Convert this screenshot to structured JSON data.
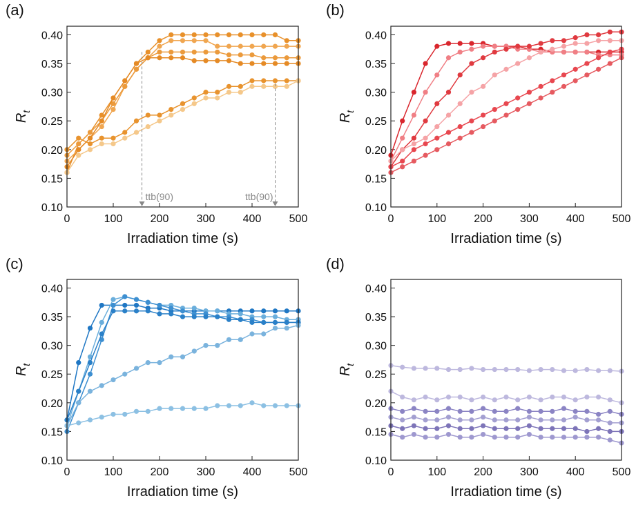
{
  "chart_data": [
    {
      "type": "line",
      "title": "(a)",
      "xlabel": "Irradiation time (s)",
      "ylabel": "R",
      "ylabel_subscript": "t",
      "xlim": [
        0,
        500
      ],
      "ylim": [
        0.1,
        0.415
      ],
      "xticks": [
        0,
        100,
        200,
        300,
        400,
        500
      ],
      "yticks": [
        {
          "value": 0.1,
          "label": "0.10"
        },
        0.15,
        {
          "value": 0.2,
          "label": "0.20"
        },
        0.25,
        {
          "value": 0.3,
          "label": "0.30"
        },
        0.35,
        {
          "value": 0.4,
          "label": "0.40"
        }
      ],
      "x": [
        0,
        25,
        50,
        75,
        100,
        125,
        150,
        175,
        200,
        225,
        250,
        275,
        300,
        325,
        350,
        375,
        400,
        425,
        450,
        475,
        500
      ],
      "series": [
        {
          "color": "#e8902a",
          "values": [
            0.16,
            0.21,
            0.23,
            0.26,
            0.29,
            0.32,
            0.35,
            0.37,
            0.39,
            0.4,
            0.4,
            0.4,
            0.4,
            0.4,
            0.4,
            0.4,
            0.4,
            0.4,
            0.4,
            0.39,
            0.39
          ]
        },
        {
          "color": "#f0a650",
          "values": [
            0.18,
            0.2,
            0.22,
            0.24,
            0.27,
            0.31,
            0.34,
            0.36,
            0.38,
            0.39,
            0.39,
            0.39,
            0.39,
            0.38,
            0.38,
            0.38,
            0.38,
            0.38,
            0.38,
            0.38,
            0.38
          ]
        },
        {
          "color": "#eb9a3c",
          "values": [
            0.19,
            0.21,
            0.23,
            0.25,
            0.28,
            0.31,
            0.34,
            0.36,
            0.37,
            0.37,
            0.37,
            0.37,
            0.37,
            0.37,
            0.365,
            0.365,
            0.365,
            0.36,
            0.36,
            0.36,
            0.36
          ]
        },
        {
          "color": "#e58a25",
          "values": [
            0.17,
            0.2,
            0.22,
            0.25,
            0.29,
            0.32,
            0.35,
            0.36,
            0.36,
            0.36,
            0.36,
            0.355,
            0.355,
            0.355,
            0.355,
            0.35,
            0.35,
            0.35,
            0.35,
            0.35,
            0.35
          ]
        },
        {
          "color": "#e8932e",
          "values": [
            0.2,
            0.22,
            0.21,
            0.22,
            0.22,
            0.23,
            0.25,
            0.26,
            0.26,
            0.27,
            0.28,
            0.29,
            0.3,
            0.3,
            0.31,
            0.31,
            0.32,
            0.32,
            0.32,
            0.32,
            0.32
          ]
        },
        {
          "color": "#f5c88a",
          "values": [
            0.16,
            0.19,
            0.2,
            0.21,
            0.21,
            0.22,
            0.23,
            0.24,
            0.25,
            0.26,
            0.27,
            0.28,
            0.29,
            0.29,
            0.3,
            0.3,
            0.31,
            0.31,
            0.31,
            0.31,
            0.32
          ]
        }
      ],
      "annotations": [
        {
          "text": "ttb(90)",
          "x": 162,
          "y": 0.37
        },
        {
          "text": "ttb(90)",
          "x": 450,
          "y": 0.315
        }
      ]
    },
    {
      "type": "line",
      "title": "(b)",
      "xlabel": "Irradiation time (s)",
      "ylabel": "R",
      "ylabel_subscript": "t",
      "xlim": [
        0,
        500
      ],
      "ylim": [
        0.1,
        0.415
      ],
      "xticks": [
        0,
        100,
        200,
        300,
        400,
        500
      ],
      "yticks": [
        {
          "value": 0.1,
          "label": "0.10"
        },
        0.15,
        {
          "value": 0.2,
          "label": "0.20"
        },
        0.25,
        {
          "value": 0.3,
          "label": "0.30"
        },
        0.35,
        {
          "value": 0.4,
          "label": "0.40"
        }
      ],
      "x": [
        0,
        25,
        50,
        75,
        100,
        125,
        150,
        175,
        200,
        225,
        250,
        275,
        300,
        325,
        350,
        375,
        400,
        425,
        450,
        475,
        500
      ],
      "series": [
        {
          "color": "#d9262d",
          "values": [
            0.19,
            0.25,
            0.3,
            0.35,
            0.38,
            0.385,
            0.385,
            0.385,
            0.385,
            0.38,
            0.38,
            0.38,
            0.375,
            0.375,
            0.37,
            0.37,
            0.37,
            0.37,
            0.37,
            0.37,
            0.37
          ]
        },
        {
          "color": "#f07f85",
          "values": [
            0.18,
            0.22,
            0.26,
            0.3,
            0.33,
            0.36,
            0.37,
            0.375,
            0.38,
            0.38,
            0.38,
            0.375,
            0.375,
            0.37,
            0.37,
            0.37,
            0.37,
            0.37,
            0.365,
            0.365,
            0.365
          ]
        },
        {
          "color": "#e03a40",
          "values": [
            0.17,
            0.2,
            0.22,
            0.25,
            0.28,
            0.3,
            0.33,
            0.35,
            0.36,
            0.37,
            0.375,
            0.38,
            0.38,
            0.385,
            0.39,
            0.39,
            0.395,
            0.4,
            0.4,
            0.405,
            0.405
          ]
        },
        {
          "color": "#f5a3a6",
          "values": [
            0.18,
            0.2,
            0.21,
            0.22,
            0.24,
            0.26,
            0.28,
            0.3,
            0.31,
            0.33,
            0.34,
            0.35,
            0.36,
            0.37,
            0.375,
            0.38,
            0.385,
            0.385,
            0.39,
            0.39,
            0.39
          ]
        },
        {
          "color": "#e8474f",
          "values": [
            0.17,
            0.18,
            0.2,
            0.21,
            0.22,
            0.23,
            0.24,
            0.25,
            0.26,
            0.27,
            0.28,
            0.29,
            0.3,
            0.31,
            0.32,
            0.33,
            0.34,
            0.35,
            0.36,
            0.37,
            0.375
          ]
        },
        {
          "color": "#e65a60",
          "values": [
            0.16,
            0.17,
            0.18,
            0.19,
            0.2,
            0.21,
            0.22,
            0.23,
            0.24,
            0.25,
            0.26,
            0.27,
            0.28,
            0.29,
            0.3,
            0.31,
            0.32,
            0.33,
            0.34,
            0.35,
            0.36
          ]
        }
      ]
    },
    {
      "type": "line",
      "title": "(c)",
      "xlabel": "Irradiation time (s)",
      "ylabel": "R",
      "ylabel_subscript": "t",
      "xlim": [
        0,
        500
      ],
      "ylim": [
        0.1,
        0.415
      ],
      "xticks": [
        0,
        100,
        200,
        300,
        400,
        500
      ],
      "yticks": [
        {
          "value": 0.1,
          "label": "0.10"
        },
        0.15,
        {
          "value": 0.2,
          "label": "0.20"
        },
        0.25,
        {
          "value": 0.3,
          "label": "0.30"
        },
        0.35,
        {
          "value": 0.4,
          "label": "0.40"
        }
      ],
      "x": [
        0,
        25,
        50,
        75,
        100,
        125,
        150,
        175,
        200,
        225,
        250,
        275,
        300,
        325,
        350,
        375,
        400,
        425,
        450,
        475,
        500
      ],
      "series": [
        {
          "color": "#1f77c4",
          "values": [
            0.17,
            0.27,
            0.33,
            0.37,
            0.37,
            0.37,
            0.37,
            0.365,
            0.365,
            0.36,
            0.36,
            0.36,
            0.36,
            0.36,
            0.36,
            0.36,
            0.36,
            0.36,
            0.36,
            0.36,
            0.36
          ]
        },
        {
          "color": "#6aaedc",
          "values": [
            0.16,
            0.22,
            0.28,
            0.34,
            0.38,
            0.385,
            0.38,
            0.375,
            0.37,
            0.37,
            0.365,
            0.365,
            0.36,
            0.36,
            0.355,
            0.355,
            0.35,
            0.35,
            0.35,
            0.345,
            0.345
          ]
        },
        {
          "color": "#3d8fd1",
          "values": [
            0.15,
            0.2,
            0.25,
            0.31,
            0.37,
            0.385,
            0.38,
            0.375,
            0.37,
            0.365,
            0.36,
            0.355,
            0.355,
            0.35,
            0.35,
            0.345,
            0.345,
            0.34,
            0.34,
            0.34,
            0.34
          ]
        },
        {
          "color": "#2a80c8",
          "values": [
            0.17,
            0.22,
            0.27,
            0.32,
            0.36,
            0.36,
            0.36,
            0.36,
            0.355,
            0.355,
            0.35,
            0.35,
            0.35,
            0.35,
            0.345,
            0.345,
            0.34,
            0.34,
            0.34,
            0.34,
            0.34
          ]
        },
        {
          "color": "#7ab3dd",
          "values": [
            0.16,
            0.2,
            0.22,
            0.23,
            0.24,
            0.25,
            0.26,
            0.27,
            0.27,
            0.28,
            0.28,
            0.29,
            0.3,
            0.3,
            0.31,
            0.31,
            0.32,
            0.32,
            0.33,
            0.33,
            0.335
          ]
        },
        {
          "color": "#8cc0e3",
          "values": [
            0.16,
            0.165,
            0.17,
            0.175,
            0.18,
            0.18,
            0.185,
            0.185,
            0.19,
            0.19,
            0.19,
            0.19,
            0.19,
            0.195,
            0.195,
            0.195,
            0.2,
            0.195,
            0.195,
            0.195,
            0.195
          ]
        }
      ]
    },
    {
      "type": "line",
      "title": "(d)",
      "xlabel": "Irradiation time (s)",
      "ylabel": "R",
      "ylabel_subscript": "t",
      "xlim": [
        0,
        500
      ],
      "ylim": [
        0.1,
        0.415
      ],
      "xticks": [
        0,
        100,
        200,
        300,
        400,
        500
      ],
      "yticks": [
        {
          "value": 0.1,
          "label": "0.10"
        },
        0.15,
        {
          "value": 0.2,
          "label": "0.20"
        },
        0.25,
        {
          "value": 0.3,
          "label": "0.30"
        },
        0.35,
        {
          "value": 0.4,
          "label": "0.40"
        }
      ],
      "x": [
        0,
        25,
        50,
        75,
        100,
        125,
        150,
        175,
        200,
        225,
        250,
        275,
        300,
        325,
        350,
        375,
        400,
        425,
        450,
        475,
        500
      ],
      "series": [
        {
          "color": "#bdb8de",
          "values": [
            0.265,
            0.262,
            0.26,
            0.26,
            0.26,
            0.258,
            0.258,
            0.26,
            0.258,
            0.258,
            0.258,
            0.258,
            0.256,
            0.258,
            0.258,
            0.256,
            0.256,
            0.258,
            0.256,
            0.256,
            0.255
          ]
        },
        {
          "color": "#bdb8de",
          "values": [
            0.22,
            0.21,
            0.205,
            0.21,
            0.205,
            0.21,
            0.21,
            0.205,
            0.21,
            0.205,
            0.21,
            0.205,
            0.21,
            0.205,
            0.21,
            0.21,
            0.205,
            0.21,
            0.21,
            0.205,
            0.2
          ]
        },
        {
          "color": "#8b84c4",
          "values": [
            0.19,
            0.185,
            0.19,
            0.185,
            0.185,
            0.19,
            0.185,
            0.185,
            0.19,
            0.185,
            0.185,
            0.19,
            0.185,
            0.185,
            0.185,
            0.19,
            0.185,
            0.185,
            0.18,
            0.185,
            0.18
          ]
        },
        {
          "color": "#a39fd1",
          "values": [
            0.175,
            0.17,
            0.175,
            0.17,
            0.17,
            0.175,
            0.17,
            0.17,
            0.175,
            0.17,
            0.17,
            0.17,
            0.175,
            0.17,
            0.17,
            0.17,
            0.175,
            0.17,
            0.17,
            0.165,
            0.165
          ]
        },
        {
          "color": "#7d74b8",
          "values": [
            0.16,
            0.155,
            0.16,
            0.155,
            0.155,
            0.16,
            0.155,
            0.155,
            0.16,
            0.155,
            0.155,
            0.155,
            0.16,
            0.155,
            0.155,
            0.155,
            0.155,
            0.15,
            0.155,
            0.15,
            0.15
          ]
        },
        {
          "color": "#9e98cf",
          "values": [
            0.145,
            0.14,
            0.145,
            0.14,
            0.14,
            0.145,
            0.14,
            0.14,
            0.145,
            0.14,
            0.14,
            0.14,
            0.145,
            0.14,
            0.14,
            0.14,
            0.14,
            0.14,
            0.14,
            0.135,
            0.13
          ]
        }
      ]
    }
  ]
}
